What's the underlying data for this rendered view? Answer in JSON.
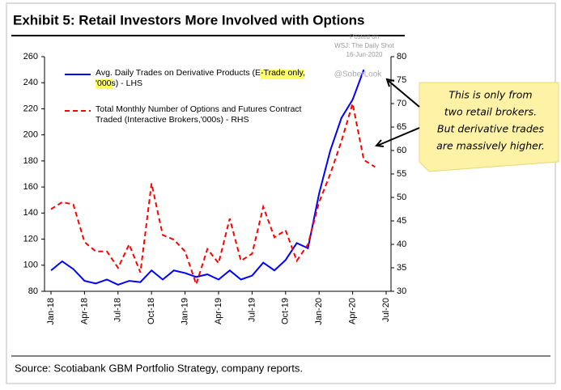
{
  "chart_data": {
    "type": "line",
    "title": "Exhibit 5: Retail Investors More Involved with Options",
    "source": "Source: Scotiabank GBM Portfolio Strategy, company reports.",
    "watermark": [
      "Posted on",
      "WSJ: The Daily Shot",
      "16-Jun-2020"
    ],
    "watermark_handle": "@SoberLook",
    "annotation": [
      "This is only from",
      "two retail brokers.",
      "But derivative trades",
      "are massively higher."
    ],
    "categories": [
      "Jan-18",
      null,
      null,
      "Apr-18",
      null,
      null,
      "Jul-18",
      null,
      null,
      "Oct-18",
      null,
      null,
      "Jan-19",
      null,
      null,
      "Apr-19",
      null,
      null,
      "Jul-19",
      null,
      null,
      "Oct-19",
      null,
      null,
      "Jan-20",
      null,
      null,
      "Apr-20",
      null,
      null,
      "Jul-20"
    ],
    "series": [
      {
        "name": "Avg. Daily Trades on Derivative Products (E-Trade only, '000s) - LHS",
        "color": "#0000ff",
        "dash": false,
        "axis": "y",
        "values": [
          96,
          103,
          97,
          88,
          86,
          89,
          85,
          88,
          87,
          96,
          89,
          96,
          94,
          91,
          93,
          89,
          96,
          89,
          92,
          102,
          96,
          104,
          117,
          113,
          155,
          188,
          213,
          227,
          250,
          null,
          null
        ]
      },
      {
        "name": "Total Monthly Number of Options and Futures Contract Traded (Interactive Brokers,'000s) - RHS",
        "color": "#ff0000",
        "dash": true,
        "axis": "y2",
        "values": [
          47.5,
          49,
          48.5,
          40.5,
          38.5,
          38.5,
          35,
          40,
          34,
          53,
          42,
          41,
          38.5,
          31.5,
          39,
          36,
          45.5,
          36.5,
          38,
          48,
          41.5,
          43,
          36.5,
          40,
          49,
          55,
          62,
          70,
          58,
          56.5,
          null
        ]
      }
    ],
    "ylim": [
      80,
      260
    ],
    "yticks": [
      80,
      100,
      120,
      140,
      160,
      180,
      200,
      220,
      240,
      260
    ],
    "y2lim": [
      30,
      80
    ],
    "y2ticks": [
      30,
      35,
      40,
      45,
      50,
      55,
      60,
      65,
      70,
      75,
      80
    ]
  }
}
